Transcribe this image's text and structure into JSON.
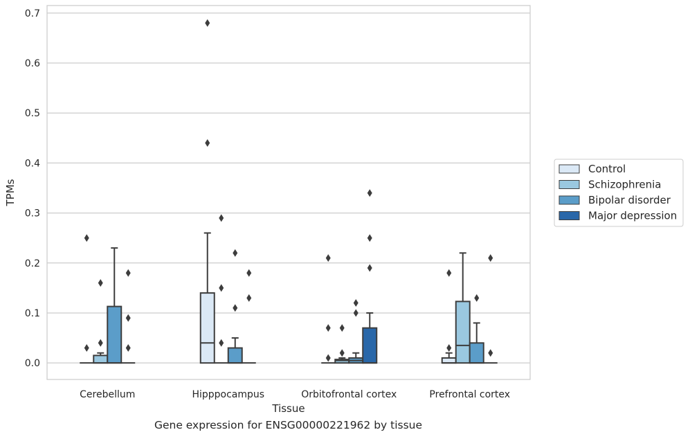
{
  "caption": "Gene expression for ENSG00000221962 by tissue",
  "chart_data": {
    "type": "box",
    "xlabel": "Tissue",
    "ylabel": "TPMs",
    "ylim": [
      -0.033,
      0.715
    ],
    "yticks": [
      "0.0",
      "0.1",
      "0.2",
      "0.3",
      "0.4",
      "0.5",
      "0.6",
      "0.7"
    ],
    "ytick_values": [
      0,
      0.1,
      0.2,
      0.3,
      0.4,
      0.5,
      0.6,
      0.7
    ],
    "grid": "horizontal",
    "legend_position": "right",
    "categories": [
      "Cerebellum",
      "Hipppocampus",
      "Orbitofrontal cortex",
      "Prefrontal cortex"
    ],
    "series": [
      {
        "name": "Control",
        "color": "#dbe9f6",
        "boxes": [
          {
            "q1": 0,
            "median": 0,
            "q3": 0,
            "whisker_low": 0,
            "whisker_high": 0,
            "outliers": [
              0.03,
              0.25
            ]
          },
          {
            "q1": 0,
            "median": 0.04,
            "q3": 0.14,
            "whisker_low": 0,
            "whisker_high": 0.26,
            "outliers": [
              0.44,
              0.68
            ]
          },
          {
            "q1": 0,
            "median": 0,
            "q3": 0,
            "whisker_low": 0,
            "whisker_high": 0,
            "outliers": [
              0.01,
              0.07,
              0.21
            ]
          },
          {
            "q1": 0,
            "median": 0,
            "q3": 0.01,
            "whisker_low": 0,
            "whisker_high": 0.02,
            "outliers": [
              0.03,
              0.18
            ]
          }
        ]
      },
      {
        "name": "Schizophrenia",
        "color": "#9ac8e0",
        "boxes": [
          {
            "q1": 0,
            "median": 0,
            "q3": 0.015,
            "whisker_low": 0,
            "whisker_high": 0.02,
            "outliers": [
              0.04,
              0.16
            ]
          },
          {
            "q1": 0,
            "median": 0,
            "q3": 0,
            "whisker_low": 0,
            "whisker_high": 0,
            "outliers": [
              0.04,
              0.15,
              0.29
            ]
          },
          {
            "q1": 0,
            "median": 0.005,
            "q3": 0.007,
            "whisker_low": 0,
            "whisker_high": 0.01,
            "outliers": [
              0.02,
              0.07
            ]
          },
          {
            "q1": 0,
            "median": 0.035,
            "q3": 0.123,
            "whisker_low": 0,
            "whisker_high": 0.22,
            "outliers": []
          }
        ]
      },
      {
        "name": "Bipolar disorder",
        "color": "#5b9dc9",
        "boxes": [
          {
            "q1": 0,
            "median": 0,
            "q3": 0.113,
            "whisker_low": 0,
            "whisker_high": 0.23,
            "outliers": []
          },
          {
            "q1": 0,
            "median": 0,
            "q3": 0.03,
            "whisker_low": 0,
            "whisker_high": 0.05,
            "outliers": [
              0.11,
              0.22
            ]
          },
          {
            "q1": 0,
            "median": 0.005,
            "q3": 0.01,
            "whisker_low": 0,
            "whisker_high": 0.02,
            "outliers": [
              0.1,
              0.12
            ]
          },
          {
            "q1": 0,
            "median": 0,
            "q3": 0.04,
            "whisker_low": 0,
            "whisker_high": 0.08,
            "outliers": [
              0.13
            ]
          }
        ]
      },
      {
        "name": "Major depression",
        "color": "#2967a9",
        "boxes": [
          {
            "q1": 0,
            "median": 0,
            "q3": 0,
            "whisker_low": 0,
            "whisker_high": 0,
            "outliers": [
              0.03,
              0.09,
              0.18
            ]
          },
          {
            "q1": 0,
            "median": 0,
            "q3": 0,
            "whisker_low": 0,
            "whisker_high": 0,
            "outliers": [
              0.13,
              0.18
            ]
          },
          {
            "q1": 0,
            "median": 0,
            "q3": 0.07,
            "whisker_low": 0,
            "whisker_high": 0.1,
            "outliers": [
              0.19,
              0.25,
              0.34
            ]
          },
          {
            "q1": 0,
            "median": 0,
            "q3": 0,
            "whisker_low": 0,
            "whisker_high": 0,
            "outliers": [
              0.02,
              0.21
            ]
          }
        ]
      }
    ]
  }
}
